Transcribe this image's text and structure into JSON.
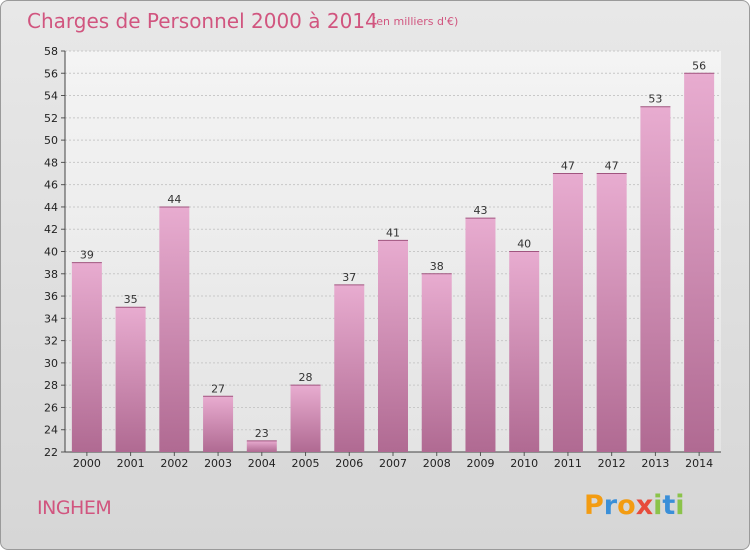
{
  "header": {
    "title": "Charges de Personnel 2000 à 2014",
    "subtitle": "(en milliers d'€)"
  },
  "footer": {
    "place": "INGHEM",
    "logo_letters": [
      "P",
      "r",
      "o",
      "x",
      "i",
      "t",
      "i"
    ],
    "logo_colors": [
      "#f39c12",
      "#3a8fd8",
      "#f39c12",
      "#e74c3c",
      "#8bc34a",
      "#3a8fd8",
      "#8bc34a"
    ]
  },
  "chart_data": {
    "type": "bar",
    "title": "Charges de Personnel 2000 à 2014",
    "subtitle": "(en milliers d'€)",
    "categories": [
      "2000",
      "2001",
      "2002",
      "2003",
      "2004",
      "2005",
      "2006",
      "2007",
      "2008",
      "2009",
      "2010",
      "2011",
      "2012",
      "2013",
      "2014"
    ],
    "values": [
      39,
      35,
      44,
      27,
      23,
      28,
      37,
      41,
      38,
      43,
      40,
      47,
      47,
      53,
      56
    ],
    "ylim": [
      22,
      58
    ],
    "yticks": [
      22,
      24,
      26,
      28,
      30,
      32,
      34,
      36,
      38,
      40,
      42,
      44,
      46,
      48,
      50,
      52,
      54,
      56,
      58
    ],
    "xlabel": "",
    "ylabel": "",
    "grid": true,
    "bar_color": "#d98bb4"
  }
}
